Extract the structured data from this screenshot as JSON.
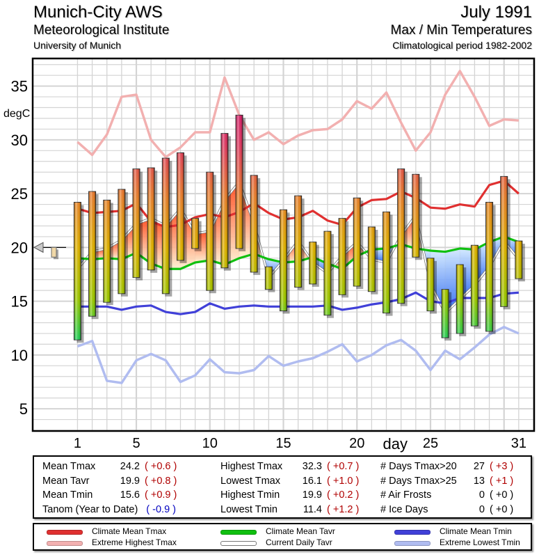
{
  "header": {
    "station": "Munich-City AWS",
    "institute": "Meteorological Institute",
    "university": "University of Munich",
    "month": "July 1991",
    "subtitle": "Max / Min Temperatures",
    "period": "Climatological period 1982-2002"
  },
  "colors": {
    "climate_mean_tmax": "#e03030",
    "extreme_highest_tmax": "#f2b0b0",
    "climate_mean_tavr": "#10c010",
    "current_daily_tavr": "#c8c8c8",
    "climate_mean_tmin": "#4040d8",
    "extreme_lowest_tmin": "#b0bcf0",
    "grid": "#d4d4d4"
  },
  "chart_data": {
    "type": "bar",
    "title": "Max / Min Temperatures",
    "xlabel": "day",
    "ylabel": "degC",
    "ylim": [
      3,
      37.5
    ],
    "xlim": [
      -2,
      32
    ],
    "grid": true,
    "yticks": [
      5,
      10,
      15,
      20,
      25,
      30,
      35
    ],
    "xticks": [
      1,
      5,
      10,
      15,
      20,
      25,
      31
    ],
    "days": [
      1,
      2,
      3,
      4,
      5,
      6,
      7,
      8,
      9,
      10,
      11,
      12,
      13,
      14,
      15,
      16,
      17,
      18,
      19,
      20,
      21,
      22,
      23,
      24,
      25,
      26,
      27,
      28,
      29,
      30,
      31
    ],
    "tmax": [
      24.2,
      25.2,
      24.4,
      25.4,
      27.3,
      27.4,
      28.3,
      28.8,
      22.7,
      27.0,
      30.6,
      32.3,
      26.7,
      18.2,
      23.5,
      24.8,
      20.5,
      21.5,
      22.7,
      24.6,
      21.9,
      23.3,
      27.3,
      26.8,
      19.0,
      16.1,
      18.4,
      20.2,
      24.2,
      26.6,
      20.6
    ],
    "tmin": [
      11.4,
      13.6,
      14.9,
      15.7,
      17.2,
      17.9,
      15.7,
      18.8,
      19.9,
      16.0,
      18.1,
      19.9,
      17.7,
      16.1,
      14.1,
      16.3,
      16.6,
      13.7,
      15.6,
      16.4,
      15.9,
      13.9,
      14.8,
      19.1,
      14.1,
      11.6,
      12.0,
      12.7,
      12.2,
      14.5,
      17.1
    ],
    "series": [
      {
        "name": "Climate Mean Tmax",
        "values": [
          23.6,
          23.2,
          23.3,
          23.4,
          24.1,
          22.4,
          21.9,
          22.1,
          22.8,
          23.1,
          22.8,
          23.3,
          24.1,
          23.2,
          22.6,
          22.8,
          23.4,
          22.5,
          22.1,
          23.7,
          24.4,
          24.5,
          25.2,
          24.6,
          23.7,
          23.6,
          24.0,
          23.8,
          25.8,
          26.2,
          25.0
        ]
      },
      {
        "name": "Extreme Highest Tmax",
        "values": [
          29.8,
          28.6,
          30.5,
          34.0,
          34.2,
          30.0,
          28.4,
          29.3,
          30.7,
          30.7,
          35.8,
          32.3,
          30.0,
          30.7,
          29.6,
          30.4,
          30.9,
          31.0,
          31.9,
          33.6,
          32.9,
          34.4,
          31.6,
          29.0,
          30.7,
          34.2,
          36.4,
          34.0,
          31.3,
          31.9,
          31.8
        ]
      },
      {
        "name": "Climate Mean Tavr",
        "values": [
          19.0,
          18.9,
          19.0,
          18.9,
          19.5,
          18.5,
          18.0,
          18.0,
          18.6,
          18.8,
          18.4,
          19.0,
          19.4,
          18.9,
          18.6,
          18.7,
          19.1,
          18.5,
          18.0,
          19.2,
          19.8,
          19.9,
          20.3,
          19.9,
          19.7,
          19.6,
          19.9,
          19.8,
          20.5,
          21.0,
          20.5
        ]
      },
      {
        "name": "Current Daily Tavr",
        "values": [
          18.0,
          19.6,
          19.9,
          20.7,
          22.2,
          22.7,
          22.0,
          23.6,
          21.3,
          21.5,
          24.4,
          26.1,
          22.2,
          17.2,
          18.8,
          20.6,
          18.6,
          17.6,
          19.2,
          20.5,
          18.9,
          18.6,
          21.1,
          23.0,
          16.6,
          13.9,
          15.2,
          16.5,
          18.2,
          20.6,
          18.9
        ]
      },
      {
        "name": "Climate Mean Tmin",
        "values": [
          14.5,
          14.5,
          14.5,
          14.2,
          14.5,
          14.6,
          14.0,
          13.8,
          14.0,
          14.8,
          14.3,
          14.5,
          14.6,
          14.5,
          14.5,
          14.5,
          14.5,
          14.6,
          14.2,
          14.4,
          14.7,
          14.9,
          15.2,
          15.8,
          15.0,
          14.8,
          15.3,
          15.3,
          15.3,
          15.7,
          15.8
        ]
      },
      {
        "name": "Extreme Lowest Tmin",
        "values": [
          10.8,
          11.3,
          7.6,
          7.4,
          9.5,
          10.1,
          9.5,
          7.5,
          8.1,
          9.6,
          8.4,
          8.3,
          8.6,
          9.9,
          9.0,
          9.4,
          9.7,
          10.3,
          11.0,
          9.4,
          10.0,
          10.9,
          11.4,
          10.4,
          8.6,
          10.4,
          9.6,
          10.7,
          11.9,
          12.6,
          12.0
        ]
      }
    ],
    "marker": {
      "label": "Tanom (Year to Date)",
      "value": -0.9,
      "reference": 20
    }
  },
  "stats": {
    "col1": [
      {
        "label": "Mean Tmax",
        "value": "24.2",
        "anom": "( +0.6 )",
        "tone": "red"
      },
      {
        "label": "Mean Tavr",
        "value": "19.9",
        "anom": "( +0.8 )",
        "tone": "red"
      },
      {
        "label": "Mean Tmin",
        "value": "15.6",
        "anom": "( +0.9 )",
        "tone": "red"
      },
      {
        "label": "Tanom (Year to Date)",
        "value": "",
        "anom": "( -0.9 )",
        "tone": "blue"
      }
    ],
    "col2": [
      {
        "label": "Highest Tmax",
        "value": "32.3",
        "anom": "( +0.7 )",
        "tone": "red"
      },
      {
        "label": "Lowest Tmax",
        "value": "16.1",
        "anom": "( +1.0 )",
        "tone": "red"
      },
      {
        "label": "Highest Tmin",
        "value": "19.9",
        "anom": "( +0.2 )",
        "tone": "red"
      },
      {
        "label": "Lowest Tmin",
        "value": "11.4",
        "anom": "( +1.2 )",
        "tone": "red"
      }
    ],
    "col3": [
      {
        "label": "# Days Tmax>20",
        "value": "27",
        "anom": "( +3 )",
        "tone": "red"
      },
      {
        "label": "# Days Tmax>25",
        "value": "13",
        "anom": "( +1 )",
        "tone": "red"
      },
      {
        "label": "# Air Frosts",
        "value": "0",
        "anom": "( +0 )",
        "tone": "black"
      },
      {
        "label": "# Ice Days",
        "value": "0",
        "anom": "( +0 )",
        "tone": "black"
      }
    ]
  },
  "legend": [
    {
      "label": "Climate Mean Tmax",
      "color_key": "climate_mean_tmax"
    },
    {
      "label": "Extreme Highest Tmax",
      "color_key": "extreme_highest_tmax"
    },
    {
      "label": "Climate Mean Tavr",
      "color_key": "climate_mean_tavr"
    },
    {
      "label": "Current Daily Tavr",
      "color_key": "current_daily_tavr"
    },
    {
      "label": "Climate Mean Tmin",
      "color_key": "climate_mean_tmin"
    },
    {
      "label": "Extreme Lowest Tmin",
      "color_key": "extreme_lowest_tmin"
    }
  ]
}
